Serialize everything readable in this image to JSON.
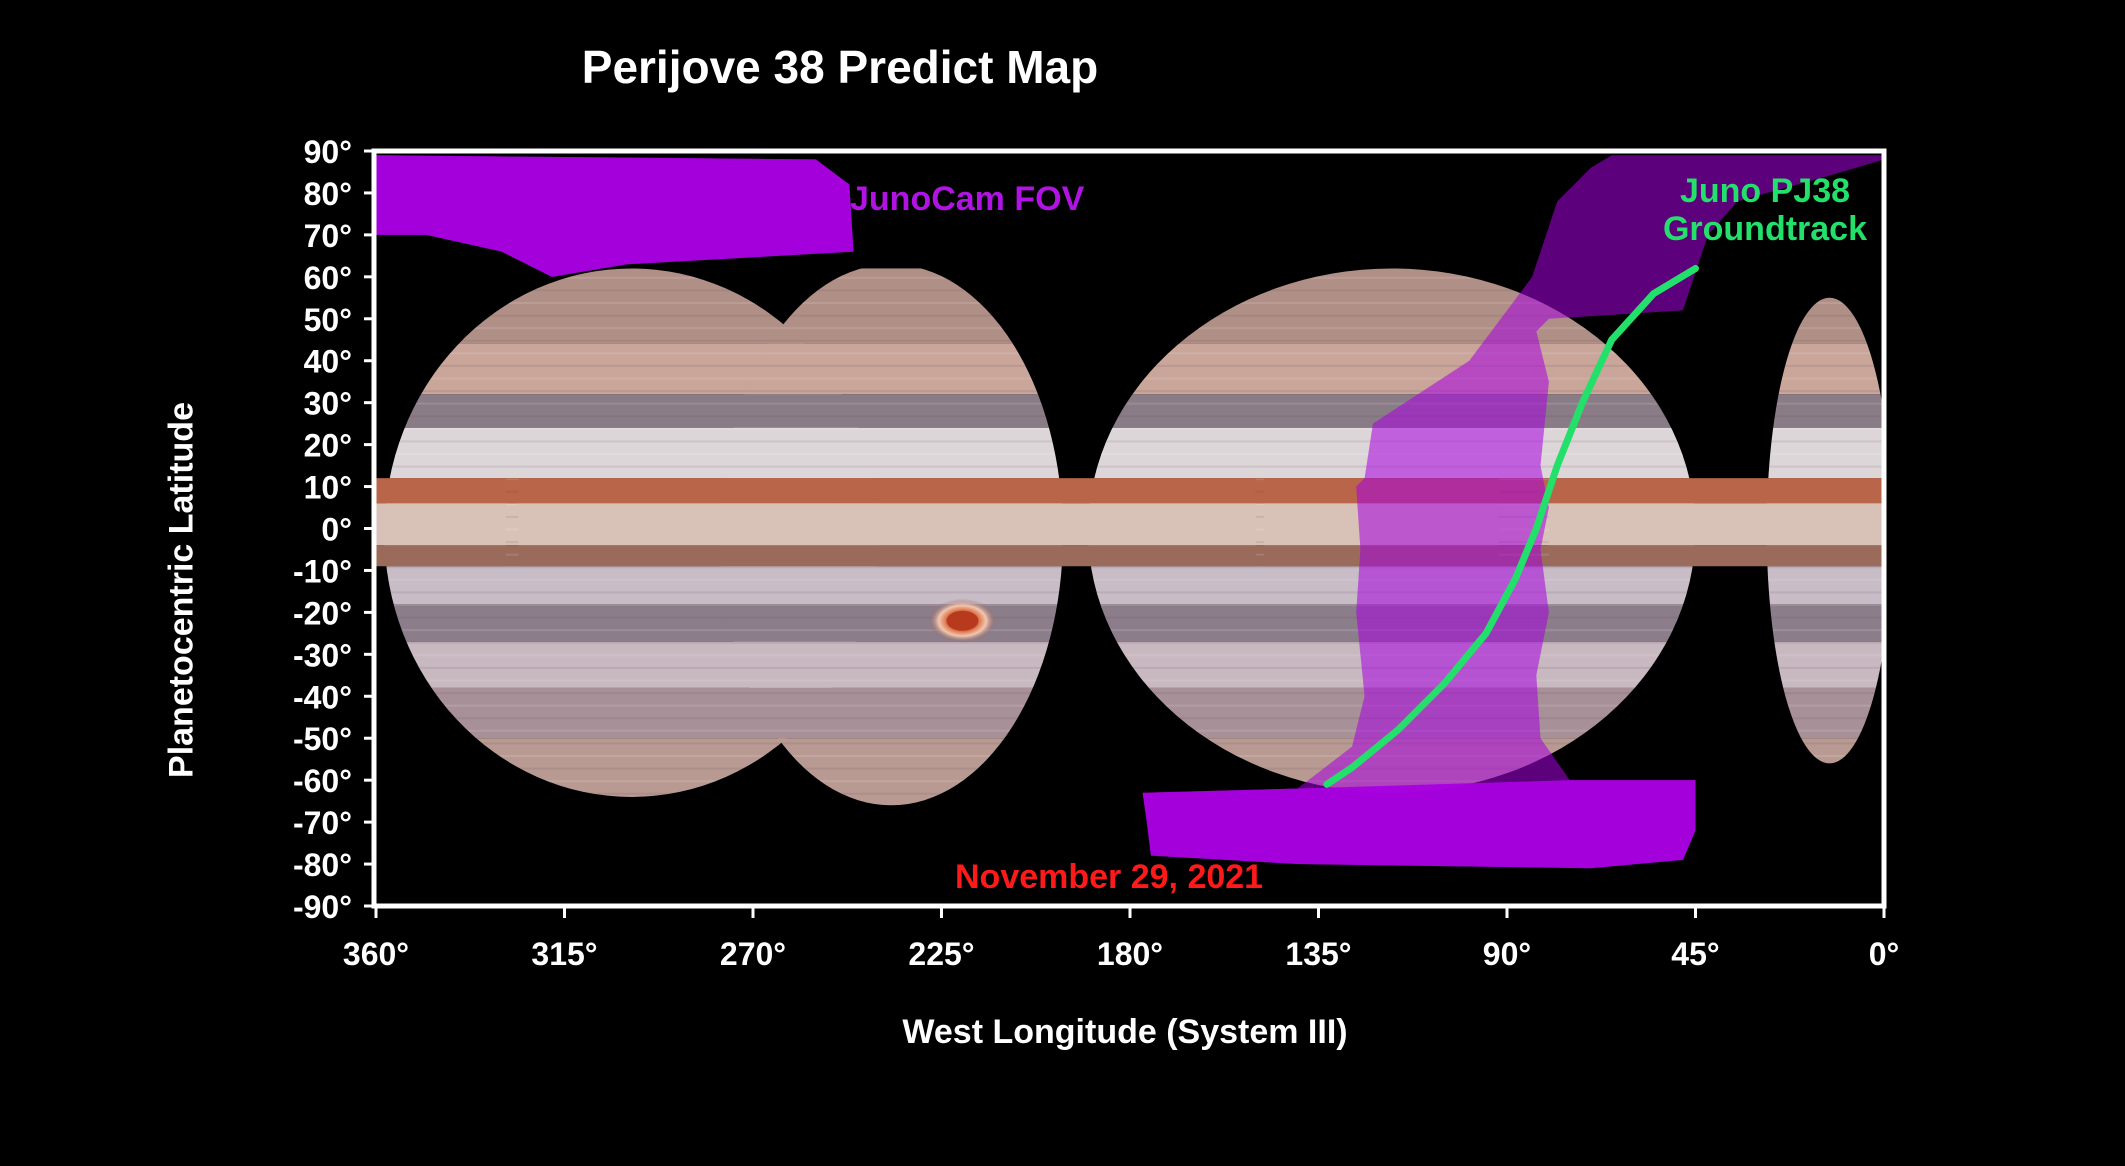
{
  "title": "Perijove 38 Predict Map",
  "xlabel": "West Longitude (System III)",
  "ylabel": "Planetocentric Latitude",
  "annotations": {
    "fov": "JunoCam FOV",
    "groundtrack_line1": "Juno PJ38",
    "groundtrack_line2": "Groundtrack",
    "date": "November 29, 2021"
  },
  "axes": {
    "x_ticks": [
      "360°",
      "315°",
      "270°",
      "225°",
      "180°",
      "135°",
      "90°",
      "45°",
      "0°"
    ],
    "y_ticks": [
      "90°",
      "80°",
      "70°",
      "60°",
      "50°",
      "40°",
      "30°",
      "20°",
      "10°",
      "0°",
      "-10°",
      "-20°",
      "-30°",
      "-40°",
      "-50°",
      "-60°",
      "-70°",
      "-80°",
      "-90°"
    ],
    "x_range": [
      360,
      0
    ],
    "y_range": [
      -90,
      90
    ]
  },
  "colors": {
    "background": "#000000",
    "frame": "#ffffff",
    "fov": "#a800e0",
    "groundtrack": "#22e06a",
    "date": "#ff1a1a"
  },
  "groundtrack": {
    "points": [
      [
        45,
        62
      ],
      [
        55,
        56
      ],
      [
        65,
        45
      ],
      [
        72,
        30
      ],
      [
        78,
        15
      ],
      [
        83,
        0
      ],
      [
        88,
        -12
      ],
      [
        95,
        -25
      ],
      [
        105,
        -37
      ],
      [
        116,
        -48
      ],
      [
        127,
        -57
      ],
      [
        133,
        -61
      ]
    ]
  },
  "fov_regions": [
    {
      "name": "north-swath",
      "points": [
        [
          360,
          89
        ],
        [
          255,
          88
        ],
        [
          247,
          82
        ],
        [
          246,
          66
        ],
        [
          300,
          63
        ],
        [
          318,
          60
        ],
        [
          330,
          66
        ],
        [
          348,
          70
        ],
        [
          360,
          70
        ]
      ]
    },
    {
      "name": "main-swath",
      "points": [
        [
          65,
          89
        ],
        [
          0,
          89
        ],
        [
          0,
          88
        ],
        [
          10,
          85
        ],
        [
          35,
          78
        ],
        [
          42,
          70
        ],
        [
          48,
          52
        ],
        [
          80,
          50
        ],
        [
          83,
          47
        ],
        [
          80,
          35
        ],
        [
          82,
          15
        ],
        [
          80,
          5
        ],
        [
          82,
          -5
        ],
        [
          80,
          -20
        ],
        [
          83,
          -35
        ],
        [
          82,
          -50
        ],
        [
          75,
          -60
        ],
        [
          45,
          -60
        ],
        [
          45,
          -72
        ],
        [
          48,
          -79
        ],
        [
          70,
          -81
        ],
        [
          140,
          -80
        ],
        [
          175,
          -78
        ],
        [
          176,
          -70
        ],
        [
          177,
          -63
        ],
        [
          140,
          -62
        ],
        [
          127,
          -52
        ],
        [
          124,
          -40
        ],
        [
          126,
          -20
        ],
        [
          125,
          -5
        ],
        [
          126,
          10
        ],
        [
          124,
          12
        ],
        [
          122,
          25
        ],
        [
          99,
          40
        ],
        [
          84,
          60
        ],
        [
          78,
          78
        ],
        [
          70,
          86
        ]
      ]
    }
  ],
  "mosaic_tiles": [
    {
      "lon_start": 358,
      "lon_end": 240,
      "lat_top": 62,
      "lat_bottom": -64,
      "shape": "disc"
    },
    {
      "lon_start": 278,
      "lon_end": 196,
      "lat_top": 63,
      "lat_bottom": -66,
      "shape": "disc"
    },
    {
      "lon_start": 190,
      "lon_end": 45,
      "lat_top": 62,
      "lat_bottom": -63,
      "shape": "disc"
    },
    {
      "lon_start": 28,
      "lon_end": -2,
      "lat_top": 55,
      "lat_bottom": -56,
      "shape": "disc"
    }
  ],
  "bands": [
    {
      "lat_top": 62,
      "lat_bottom": 44,
      "color": "#b09086"
    },
    {
      "lat_top": 44,
      "lat_bottom": 32,
      "color": "#c9a59a"
    },
    {
      "lat_top": 32,
      "lat_bottom": 24,
      "color": "#8a7c86"
    },
    {
      "lat_top": 24,
      "lat_bottom": 12,
      "color": "#ddd6d8"
    },
    {
      "lat_top": 12,
      "lat_bottom": 6,
      "color": "#b8654a"
    },
    {
      "lat_top": 6,
      "lat_bottom": -4,
      "color": "#d8c2b8"
    },
    {
      "lat_top": -4,
      "lat_bottom": -9,
      "color": "#9a6b5a"
    },
    {
      "lat_top": -9,
      "lat_bottom": -18,
      "color": "#c8bcc6"
    },
    {
      "lat_top": -18,
      "lat_bottom": -27,
      "color": "#8c7d8a"
    },
    {
      "lat_top": -27,
      "lat_bottom": -38,
      "color": "#c8b8c0"
    },
    {
      "lat_top": -38,
      "lat_bottom": -50,
      "color": "#a89098"
    },
    {
      "lat_top": -50,
      "lat_bottom": -66,
      "color": "#b89a92"
    }
  ],
  "great_red_spot": {
    "lon": 220,
    "lat": -22
  },
  "icons": {
    "great_red_spot": "red-oval-storm-icon"
  }
}
